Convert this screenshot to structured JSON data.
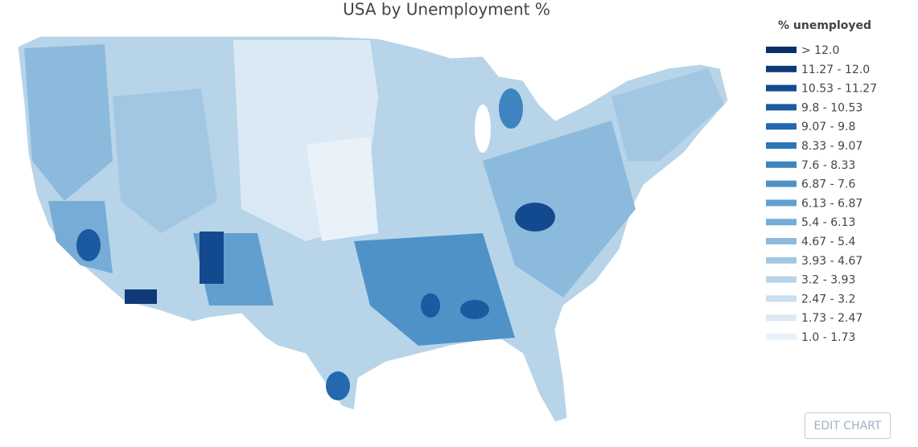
{
  "chart_data": {
    "type": "map",
    "title": "USA by Unemployment %",
    "legend_title": "% unemployed",
    "legend": [
      {
        "label": "> 12.0",
        "color": "#0b2f6b"
      },
      {
        "label": "11.27 - 12.0",
        "color": "#0e3a7a"
      },
      {
        "label": "10.53 - 11.27",
        "color": "#134a8f"
      },
      {
        "label": "9.8 - 10.53",
        "color": "#1a5aa0"
      },
      {
        "label": "9.07 - 9.8",
        "color": "#2468b0"
      },
      {
        "label": "8.33 - 9.07",
        "color": "#2f76b9"
      },
      {
        "label": "7.6 - 8.33",
        "color": "#3d84c0"
      },
      {
        "label": "6.87 - 7.6",
        "color": "#4e92c8"
      },
      {
        "label": "6.13 - 6.87",
        "color": "#619fcf"
      },
      {
        "label": "5.4 - 6.13",
        "color": "#76acd5"
      },
      {
        "label": "4.67 - 5.4",
        "color": "#8cbadc"
      },
      {
        "label": "3.93 - 4.67",
        "color": "#a2c7e2"
      },
      {
        "label": "3.2 - 3.93",
        "color": "#b7d4e9"
      },
      {
        "label": "2.47 - 3.2",
        "color": "#cadfef"
      },
      {
        "label": "1.73 - 2.47",
        "color": "#dbe9f5"
      },
      {
        "label": "1.0 - 1.73",
        "color": "#e9f1f9"
      }
    ]
  },
  "button": "EDIT CHART"
}
